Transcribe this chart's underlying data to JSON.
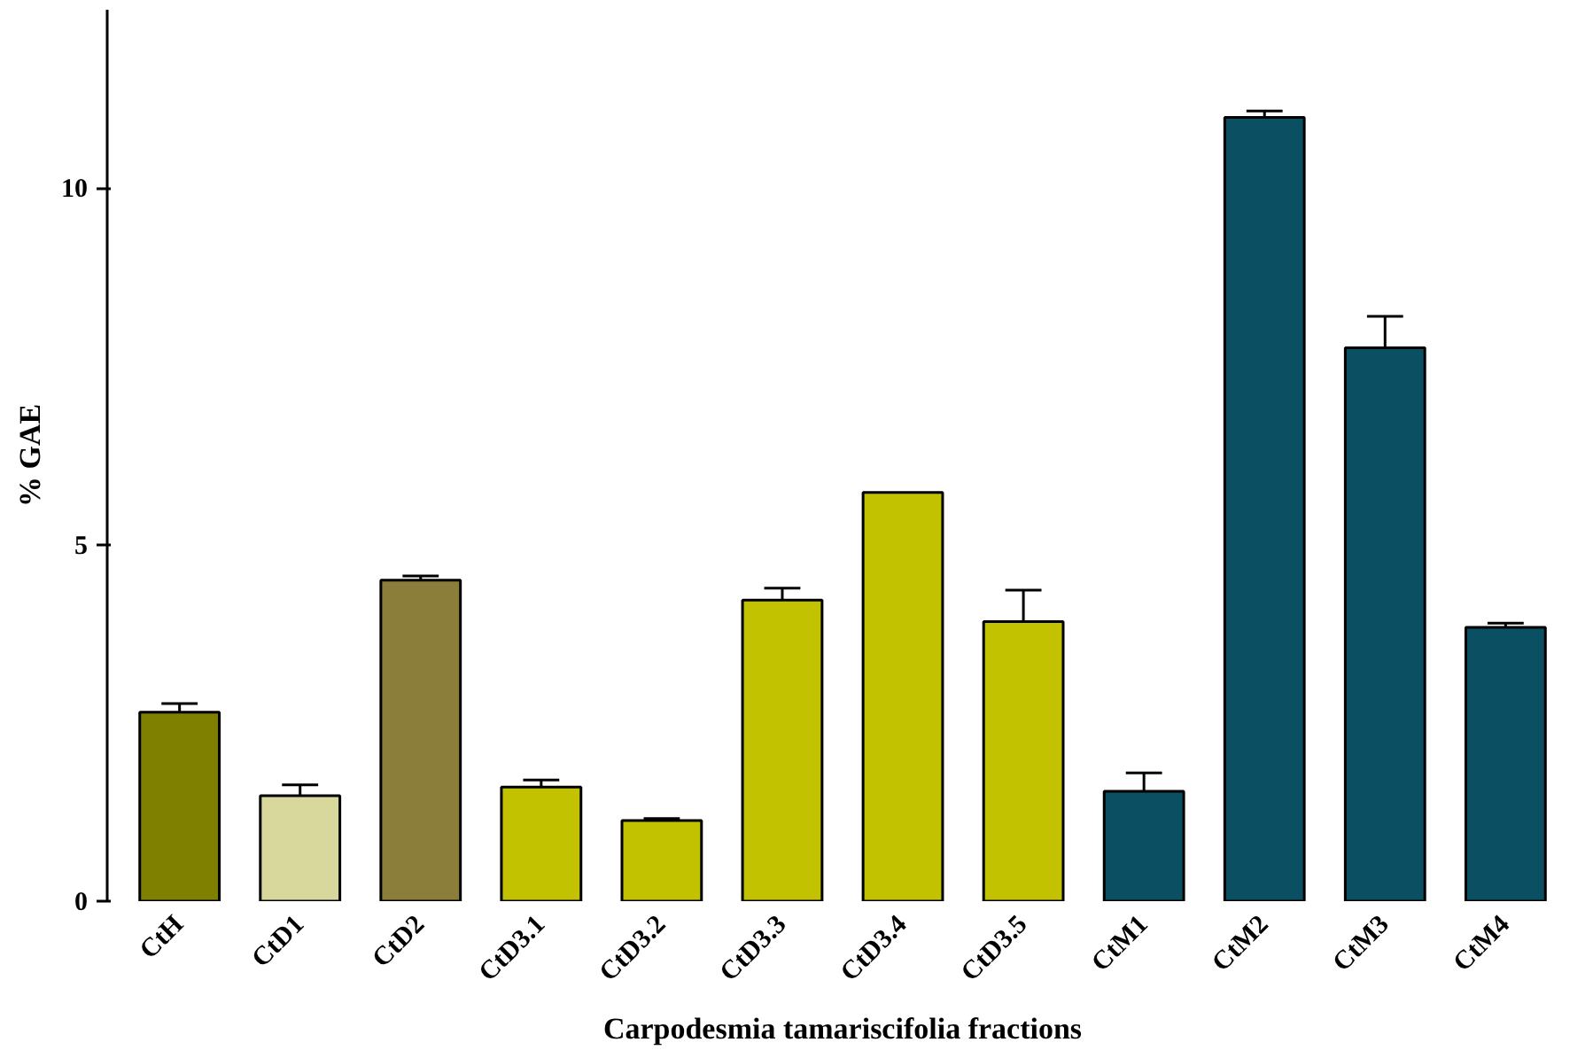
{
  "chart_data": {
    "type": "bar",
    "xlabel": "Carpodesmia tamariscifolia fractions",
    "ylabel": "% GAE",
    "categories": [
      "CtH",
      "CtD1",
      "CtD2",
      "CtD3.1",
      "CtD3.2",
      "CtD3.3",
      "CtD3.4",
      "CtD3.5",
      "CtM1",
      "CtM2",
      "CtM3",
      "CtM4"
    ],
    "values": [
      2.65,
      1.48,
      4.5,
      1.6,
      1.13,
      4.22,
      5.73,
      3.92,
      1.54,
      10.99,
      7.76,
      3.84
    ],
    "errors": [
      0.12,
      0.15,
      0.06,
      0.1,
      0.03,
      0.17,
      null,
      0.44,
      0.26,
      0.09,
      0.44,
      0.06
    ],
    "colors": [
      "#7f7f00",
      "#d8d89c",
      "#8b7d3a",
      "#c2c200",
      "#c2c200",
      "#c2c200",
      "#c2c200",
      "#c2c200",
      "#0b4f63",
      "#0b4f63",
      "#0b4f63",
      "#0b4f63"
    ],
    "ylim": [
      0,
      12.5
    ],
    "yticks": [
      0,
      5,
      10
    ],
    "grid": false
  }
}
